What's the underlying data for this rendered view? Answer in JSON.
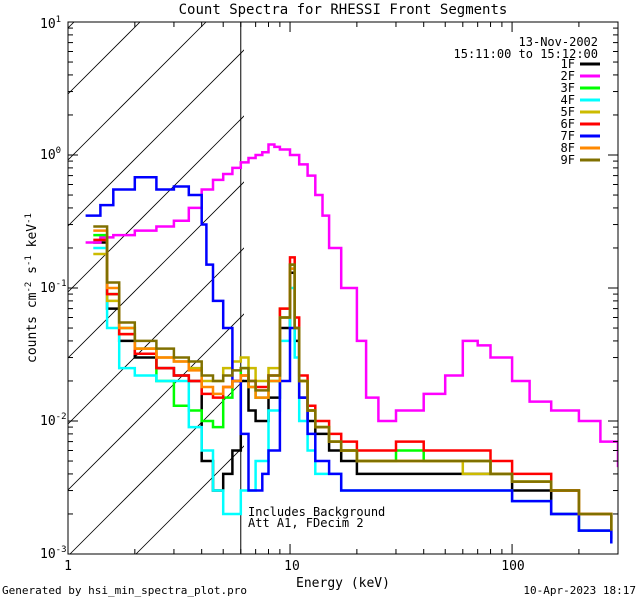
{
  "chart_data": {
    "type": "line",
    "title": "Count Spectra for RHESSI Front Segments",
    "xlabel": "Energy (keV)",
    "ylabel_parts": [
      "counts cm",
      "-2",
      " s",
      "-1",
      " keV",
      "-1"
    ],
    "xscale": "log",
    "yscale": "log",
    "xlim": [
      1,
      300
    ],
    "ylim": [
      0.001,
      10
    ],
    "x_tick_labels": [
      "1",
      "10",
      "100"
    ],
    "y_tick_bases": [
      "10",
      "10",
      "10",
      "10",
      "10"
    ],
    "y_tick_exponents": [
      "-3",
      "-2",
      "-1",
      "0",
      "1"
    ],
    "annotation_date": "13-Nov-2002",
    "annotation_time": "15:11:00 to 15:12:00",
    "background_note_line1": "Includes Background",
    "background_note_line2": "Att A1, FDecim 2",
    "attenuator_cutoff_kev": 6,
    "legend_placement": "top-right",
    "series": [
      {
        "name": "1F",
        "color": "#000000",
        "x": [
          1.3,
          1.5,
          1.7,
          2,
          2.5,
          3,
          3.5,
          4,
          4.5,
          5,
          5.5,
          6,
          6.5,
          7,
          8,
          9,
          10,
          10.5,
          11,
          12,
          13,
          15,
          17,
          20,
          25,
          30,
          40,
          60,
          80,
          100,
          150,
          200,
          280
        ],
        "y": [
          0.22,
          0.07,
          0.04,
          0.03,
          0.025,
          0.022,
          0.02,
          0.005,
          0.003,
          0.004,
          0.006,
          0.02,
          0.012,
          0.01,
          0.015,
          0.05,
          0.13,
          0.04,
          0.015,
          0.01,
          0.008,
          0.006,
          0.005,
          0.004,
          0.004,
          0.004,
          0.004,
          0.004,
          0.004,
          0.003,
          0.002,
          0.0015,
          0.0013
        ]
      },
      {
        "name": "2F",
        "color": "#ff00ff",
        "x": [
          1.2,
          1.4,
          1.6,
          2,
          2.5,
          3,
          3.5,
          4,
          4.5,
          5,
          5.5,
          6,
          6.5,
          7,
          7.5,
          8,
          8.5,
          9,
          10,
          11,
          12,
          13,
          14,
          15,
          17,
          20,
          22,
          25,
          30,
          40,
          50,
          60,
          70,
          80,
          100,
          120,
          150,
          200,
          250,
          300
        ],
        "y": [
          0.22,
          0.24,
          0.25,
          0.27,
          0.29,
          0.32,
          0.4,
          0.55,
          0.65,
          0.72,
          0.8,
          0.88,
          0.95,
          1.0,
          1.05,
          1.2,
          1.15,
          1.1,
          1.0,
          0.85,
          0.7,
          0.5,
          0.35,
          0.2,
          0.1,
          0.04,
          0.015,
          0.01,
          0.012,
          0.016,
          0.022,
          0.04,
          0.037,
          0.03,
          0.02,
          0.014,
          0.012,
          0.01,
          0.007,
          0.0045
        ]
      },
      {
        "name": "3F",
        "color": "#00ff00",
        "x": [
          1.3,
          1.5,
          1.7,
          2,
          2.5,
          3,
          3.5,
          4,
          4.5,
          5,
          5.5,
          6,
          6.5,
          7,
          8,
          9,
          10,
          10.5,
          11,
          12,
          13,
          15,
          17,
          20,
          25,
          30,
          40,
          60,
          80,
          100,
          150,
          200,
          280
        ],
        "y": [
          0.25,
          0.09,
          0.05,
          0.035,
          0.02,
          0.013,
          0.012,
          0.01,
          0.009,
          0.015,
          0.02,
          0.025,
          0.018,
          0.015,
          0.02,
          0.06,
          0.15,
          0.05,
          0.02,
          0.012,
          0.009,
          0.007,
          0.006,
          0.005,
          0.005,
          0.006,
          0.005,
          0.005,
          0.004,
          0.0035,
          0.003,
          0.002,
          0.0015
        ]
      },
      {
        "name": "4F",
        "color": "#00ffff",
        "x": [
          1.3,
          1.5,
          1.7,
          2,
          2.5,
          3,
          3.5,
          4,
          4.5,
          5,
          5.5,
          6,
          6.5,
          7,
          8,
          9,
          10,
          10.5,
          11,
          12,
          13,
          15,
          17,
          20,
          25,
          30,
          40,
          60,
          80,
          100,
          150,
          200,
          280
        ],
        "y": [
          0.2,
          0.05,
          0.025,
          0.022,
          0.02,
          0.02,
          0.009,
          0.006,
          0.003,
          0.002,
          0.002,
          0.003,
          0.003,
          0.005,
          0.012,
          0.04,
          0.1,
          0.03,
          0.01,
          0.006,
          0.004,
          0.004,
          0.003,
          0.003,
          0.003,
          0.003,
          0.003,
          0.003,
          0.003,
          0.0025,
          0.002,
          0.0015,
          0.0012
        ]
      },
      {
        "name": "5F",
        "color": "#ccbb00",
        "x": [
          1.3,
          1.5,
          1.7,
          2,
          2.5,
          3,
          3.5,
          4,
          4.5,
          5,
          5.5,
          6,
          6.5,
          7,
          8,
          9,
          10,
          10.5,
          11,
          12,
          13,
          15,
          17,
          20,
          25,
          30,
          40,
          60,
          80,
          100,
          150,
          200,
          280
        ],
        "y": [
          0.18,
          0.08,
          0.045,
          0.035,
          0.03,
          0.028,
          0.025,
          0.02,
          0.02,
          0.025,
          0.028,
          0.03,
          0.025,
          0.02,
          0.025,
          0.07,
          0.14,
          0.05,
          0.02,
          0.012,
          0.009,
          0.007,
          0.006,
          0.005,
          0.005,
          0.005,
          0.005,
          0.004,
          0.004,
          0.0035,
          0.003,
          0.002,
          0.0015
        ]
      },
      {
        "name": "6F",
        "color": "#ff0000",
        "x": [
          1.3,
          1.5,
          1.7,
          2,
          2.5,
          3,
          3.5,
          4,
          4.5,
          5,
          5.5,
          6,
          6.5,
          7,
          8,
          9,
          10,
          10.5,
          11,
          12,
          13,
          15,
          17,
          20,
          25,
          30,
          40,
          60,
          80,
          100,
          150,
          200,
          280
        ],
        "y": [
          0.23,
          0.09,
          0.045,
          0.032,
          0.025,
          0.022,
          0.02,
          0.016,
          0.015,
          0.018,
          0.02,
          0.022,
          0.02,
          0.018,
          0.022,
          0.07,
          0.17,
          0.06,
          0.022,
          0.013,
          0.01,
          0.008,
          0.007,
          0.006,
          0.006,
          0.007,
          0.006,
          0.006,
          0.005,
          0.004,
          0.003,
          0.002,
          0.0015
        ]
      },
      {
        "name": "7F",
        "color": "#0000ff",
        "x": [
          1.2,
          1.4,
          1.6,
          2,
          2.5,
          3,
          3.5,
          4,
          4.2,
          4.5,
          5,
          5.5,
          6,
          6.5,
          7,
          7.5,
          8,
          9,
          10,
          11,
          12,
          13,
          15,
          17,
          20,
          25,
          30,
          40,
          60,
          80,
          100,
          150,
          200,
          280
        ],
        "y": [
          0.35,
          0.42,
          0.55,
          0.68,
          0.55,
          0.58,
          0.5,
          0.3,
          0.15,
          0.08,
          0.05,
          0.02,
          0.008,
          0.003,
          0.003,
          0.004,
          0.006,
          0.02,
          0.05,
          0.015,
          0.008,
          0.005,
          0.004,
          0.003,
          0.003,
          0.003,
          0.003,
          0.003,
          0.003,
          0.003,
          0.0025,
          0.002,
          0.0015,
          0.0012
        ]
      },
      {
        "name": "8F",
        "color": "#ff8800",
        "x": [
          1.3,
          1.5,
          1.7,
          2,
          2.5,
          3,
          3.5,
          4,
          4.5,
          5,
          5.5,
          6,
          6.5,
          7,
          8,
          9,
          10,
          10.5,
          11,
          12,
          13,
          15,
          17,
          20,
          25,
          30,
          40,
          60,
          80,
          100,
          150,
          200,
          280
        ],
        "y": [
          0.27,
          0.1,
          0.05,
          0.035,
          0.03,
          0.028,
          0.024,
          0.018,
          0.016,
          0.018,
          0.02,
          0.022,
          0.018,
          0.015,
          0.02,
          0.06,
          0.14,
          0.05,
          0.02,
          0.012,
          0.009,
          0.007,
          0.006,
          0.005,
          0.005,
          0.005,
          0.005,
          0.005,
          0.004,
          0.0035,
          0.003,
          0.002,
          0.0015
        ]
      },
      {
        "name": "9F",
        "color": "#807000",
        "x": [
          1.3,
          1.5,
          1.7,
          2,
          2.5,
          3,
          3.5,
          4,
          4.5,
          5,
          5.5,
          6,
          6.5,
          7,
          8,
          9,
          10,
          10.5,
          11,
          12,
          13,
          15,
          17,
          20,
          25,
          30,
          40,
          60,
          80,
          100,
          150,
          200,
          280
        ],
        "y": [
          0.29,
          0.11,
          0.055,
          0.04,
          0.035,
          0.03,
          0.028,
          0.022,
          0.02,
          0.022,
          0.024,
          0.025,
          0.02,
          0.017,
          0.022,
          0.06,
          0.15,
          0.05,
          0.02,
          0.012,
          0.009,
          0.007,
          0.006,
          0.005,
          0.005,
          0.005,
          0.005,
          0.005,
          0.004,
          0.0035,
          0.003,
          0.002,
          0.0015
        ]
      }
    ]
  },
  "footer": {
    "generated_by": "Generated by hsi_min_spectra_plot.pro",
    "plot_date": "10-Apr-2023 18:17"
  }
}
